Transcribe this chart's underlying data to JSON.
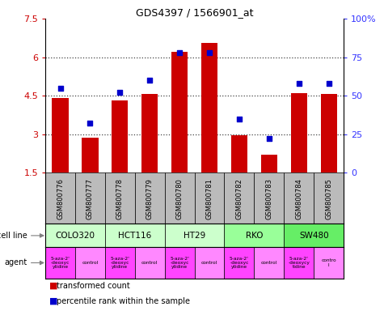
{
  "title": "GDS4397 / 1566901_at",
  "samples": [
    "GSM800776",
    "GSM800777",
    "GSM800778",
    "GSM800779",
    "GSM800780",
    "GSM800781",
    "GSM800782",
    "GSM800783",
    "GSM800784",
    "GSM800785"
  ],
  "bar_values": [
    4.4,
    2.85,
    4.3,
    4.55,
    6.2,
    6.55,
    2.95,
    2.2,
    4.6,
    4.55
  ],
  "dot_values": [
    55,
    32,
    52,
    60,
    78,
    78,
    35,
    22,
    58,
    58
  ],
  "bar_color": "#cc0000",
  "dot_color": "#0000cc",
  "ylim_left": [
    1.5,
    7.5
  ],
  "ylim_right": [
    0,
    100
  ],
  "yticks_left": [
    1.5,
    3.0,
    4.5,
    6.0,
    7.5
  ],
  "yticks_right": [
    0,
    25,
    50,
    75,
    100
  ],
  "ytick_labels_left": [
    "1.5",
    "3",
    "4.5",
    "6",
    "7.5"
  ],
  "ytick_labels_right": [
    "0",
    "25",
    "50",
    "75",
    "100%"
  ],
  "cell_lines": [
    {
      "name": "COLO320",
      "span": [
        0,
        1
      ],
      "color": "#ccffcc"
    },
    {
      "name": "HCT116",
      "span": [
        2,
        3
      ],
      "color": "#ccffcc"
    },
    {
      "name": "HT29",
      "span": [
        4,
        5
      ],
      "color": "#ccffcc"
    },
    {
      "name": "RKO",
      "span": [
        6,
        7
      ],
      "color": "#99ff99"
    },
    {
      "name": "SW480",
      "span": [
        8,
        9
      ],
      "color": "#66ee66"
    }
  ],
  "agent_drug_color": "#ff44ff",
  "agent_ctrl_color": "#ff88ff",
  "agents_drug": [
    0,
    2,
    4,
    6,
    8
  ],
  "agents_ctrl": [
    1,
    3,
    5,
    7,
    9
  ],
  "agent_drug_text": "5-aza-2'\n-deoxyc\nytidine",
  "agent_ctrl_text": "control",
  "agent_last_drug_text": "5-aza-2'\n-deoxycy\ntidine",
  "agent_last_ctrl_text": "contro\nl",
  "legend_red": "transformed count",
  "legend_blue": "percentile rank within the sample",
  "cell_line_label": "cell line",
  "agent_label": "agent",
  "sample_bg_color": "#bbbbbb",
  "dotted_line_color": "#444444",
  "right_ytick_color": "#3333ff"
}
